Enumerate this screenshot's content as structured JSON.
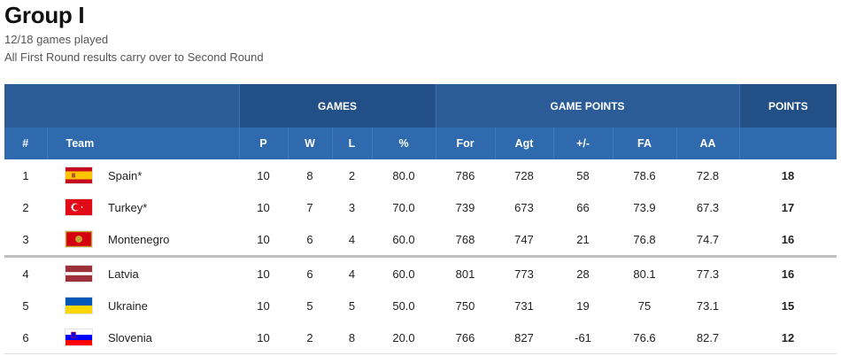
{
  "header": {
    "title": "Group I",
    "games_played": "12/18 games played",
    "note": "All First Round results carry over to Second Round"
  },
  "table": {
    "group_headers": {
      "games": "GAMES",
      "game_points": "GAME POINTS",
      "points": "POINTS"
    },
    "columns": {
      "rank": "#",
      "team": "Team",
      "p": "P",
      "w": "W",
      "l": "L",
      "pct": "%",
      "for": "For",
      "agt": "Agt",
      "diff": "+/-",
      "fa": "FA",
      "aa": "AA"
    },
    "rows": [
      {
        "rank": "1",
        "team": "Spain*",
        "flag": "spain-flag",
        "p": "10",
        "w": "8",
        "l": "2",
        "pct": "80.0",
        "for": "786",
        "agt": "728",
        "diff": "58",
        "fa": "78.6",
        "aa": "72.8",
        "pts": "18"
      },
      {
        "rank": "2",
        "team": "Turkey*",
        "flag": "turkey-flag",
        "p": "10",
        "w": "7",
        "l": "3",
        "pct": "70.0",
        "for": "739",
        "agt": "673",
        "diff": "66",
        "fa": "73.9",
        "aa": "67.3",
        "pts": "17"
      },
      {
        "rank": "3",
        "team": "Montenegro",
        "flag": "montenegro-flag",
        "p": "10",
        "w": "6",
        "l": "4",
        "pct": "60.0",
        "for": "768",
        "agt": "747",
        "diff": "21",
        "fa": "76.8",
        "aa": "74.7",
        "pts": "16"
      },
      {
        "rank": "4",
        "team": "Latvia",
        "flag": "latvia-flag",
        "p": "10",
        "w": "6",
        "l": "4",
        "pct": "60.0",
        "for": "801",
        "agt": "773",
        "diff": "28",
        "fa": "80.1",
        "aa": "77.3",
        "pts": "16"
      },
      {
        "rank": "5",
        "team": "Ukraine",
        "flag": "ukraine-flag",
        "p": "10",
        "w": "5",
        "l": "5",
        "pct": "50.0",
        "for": "750",
        "agt": "731",
        "diff": "19",
        "fa": "75",
        "aa": "73.1",
        "pts": "15"
      },
      {
        "rank": "6",
        "team": "Slovenia",
        "flag": "slovenia-flag",
        "p": "10",
        "w": "2",
        "l": "8",
        "pct": "20.0",
        "for": "766",
        "agt": "827",
        "diff": "-61",
        "fa": "76.6",
        "aa": "82.7",
        "pts": "12"
      }
    ]
  },
  "colors": {
    "header_dark": "#234f87",
    "header_mid": "#2b5c98",
    "header_cols": "#2e6aad",
    "cutline": "#bfbfbf"
  }
}
